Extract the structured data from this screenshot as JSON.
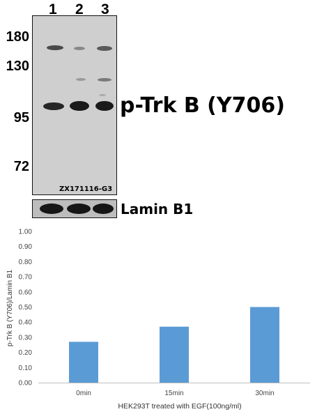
{
  "blot": {
    "lane_labels": [
      "1",
      "2",
      "3"
    ],
    "mw_markers": [
      "180",
      "130",
      "95",
      "72"
    ],
    "blot_id": "ZX171116-G3",
    "target_label": "p-Trk B (Y706)",
    "loading_control_label": "Lamin B1",
    "background_color": "#cfcfcf",
    "band_color": "#1a1a1a"
  },
  "chart_data": {
    "type": "bar",
    "categories": [
      "0min",
      "15min",
      "30min"
    ],
    "values": [
      0.27,
      0.37,
      0.5
    ],
    "title": "",
    "xlabel": "HEK293T treated with EGF(100ng/ml)",
    "ylabel": "p-Trk B (Y706)/Lamin B1",
    "ylim": [
      0,
      1.0
    ],
    "yticks": [
      "0.00",
      "0.10",
      "0.20",
      "0.30",
      "0.40",
      "0.50",
      "0.60",
      "0.70",
      "0.80",
      "0.90",
      "1.00"
    ],
    "bar_color": "#5b9bd5",
    "grid": false,
    "legend": "none"
  }
}
